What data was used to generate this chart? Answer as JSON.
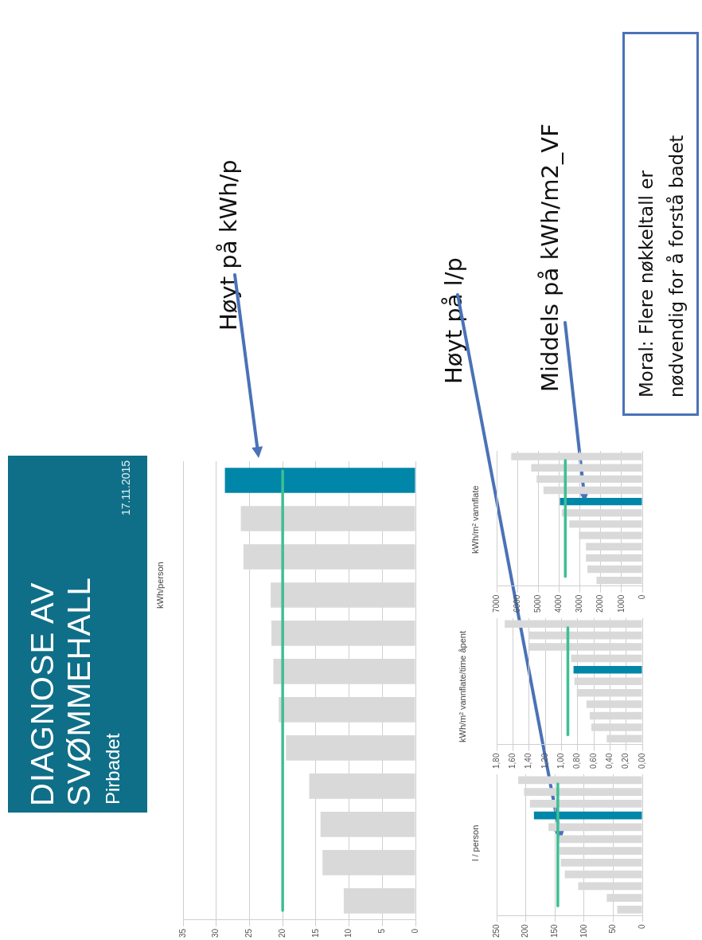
{
  "chart_data": [
    {
      "type": "bar",
      "orientation": "horizontal",
      "title": "DIAGNOSE AV SVØMMEHALL",
      "subtitle": "Pirbadet",
      "ylabel": "kWh/person",
      "categories": [
        null,
        null,
        null,
        null,
        null,
        null,
        null,
        null,
        null,
        null,
        null,
        null
      ],
      "values": [
        28.7,
        26.3,
        25.9,
        21.8,
        21.7,
        21.4,
        20.6,
        19.5,
        16.0,
        14.3,
        14.0,
        10.8
      ],
      "colors": [
        "#0086a8",
        "#d9d9d9",
        "#d9d9d9",
        "#d9d9d9",
        "#d9d9d9",
        "#d9d9d9",
        "#d9d9d9",
        "#d9d9d9",
        "#d9d9d9",
        "#d9d9d9",
        "#d9d9d9",
        "#d9d9d9"
      ],
      "xlim": [
        35,
        0
      ],
      "xticks": [
        0,
        5,
        10,
        15,
        20,
        25,
        30,
        35
      ],
      "grid": "x",
      "ref_lines": [
        {
          "axis": "x",
          "value": 20,
          "color": "#3dbf94"
        }
      ],
      "annotations": [
        "17.11.2015",
        "Høyt på kWh/p",
        "Moral: Flere nøkkeltall er nødvendig for å forstå badet"
      ]
    },
    {
      "type": "bar",
      "orientation": "horizontal",
      "ylabel": "l / person",
      "categories": [
        null,
        null,
        null,
        null,
        null,
        null,
        null,
        null,
        null,
        null,
        null,
        null
      ],
      "values": [
        213,
        203,
        193,
        186,
        161,
        143,
        142,
        140,
        133,
        110,
        61,
        43
      ],
      "colors": [
        "#d9d9d9",
        "#d9d9d9",
        "#d9d9d9",
        "#0086a8",
        "#d9d9d9",
        "#d9d9d9",
        "#d9d9d9",
        "#d9d9d9",
        "#d9d9d9",
        "#d9d9d9",
        "#d9d9d9",
        "#d9d9d9"
      ],
      "xlim": [
        250,
        0
      ],
      "xticks": [
        0,
        50,
        100,
        150,
        200,
        250
      ],
      "grid": "x",
      "ref_lines": [
        {
          "axis": "x",
          "value": 145,
          "color": "#3dbf94"
        }
      ],
      "annotations": [
        "Høyt på l/p"
      ]
    },
    {
      "type": "bar",
      "orientation": "horizontal",
      "ylabel": "kWh/m² vannflate/time åpent",
      "categories": [
        null,
        null,
        null,
        null,
        null,
        null,
        null,
        null,
        null,
        null,
        null
      ],
      "values": [
        1.7,
        1.4,
        1.4,
        0.88,
        0.85,
        0.84,
        0.81,
        0.69,
        0.65,
        0.63,
        0.44
      ],
      "colors": [
        "#d9d9d9",
        "#d9d9d9",
        "#d9d9d9",
        "#d9d9d9",
        "#0086a8",
        "#d9d9d9",
        "#d9d9d9",
        "#d9d9d9",
        "#d9d9d9",
        "#d9d9d9",
        "#d9d9d9"
      ],
      "xlim": [
        1.8,
        0
      ],
      "xticks": [
        {
          "value": 0,
          "label": "0,00"
        },
        {
          "value": 0.2,
          "label": "0,20"
        },
        {
          "value": 0.4,
          "label": "0,40"
        },
        {
          "value": 0.6,
          "label": "0,60"
        },
        {
          "value": 0.8,
          "label": "0,80"
        },
        {
          "value": 1,
          "label": "1,00"
        },
        {
          "value": 1.2,
          "label": "1,20"
        },
        {
          "value": 1.4,
          "label": "1,40"
        },
        {
          "value": 1.6,
          "label": "1,60"
        },
        {
          "value": 1.8,
          "label": "1,80"
        }
      ],
      "grid": "x",
      "ref_lines": [
        {
          "axis": "x",
          "value": 0.92,
          "color": "#3dbf94"
        }
      ]
    },
    {
      "type": "bar",
      "orientation": "horizontal",
      "ylabel": "kWh/m² vannflate",
      "categories": [
        null,
        null,
        null,
        null,
        null,
        null,
        null,
        null,
        null,
        null,
        null,
        null
      ],
      "values": [
        6300,
        5340,
        5080,
        4750,
        3960,
        3870,
        3510,
        3050,
        2710,
        2710,
        2640,
        2200
      ],
      "colors": [
        "#d9d9d9",
        "#d9d9d9",
        "#d9d9d9",
        "#d9d9d9",
        "#0086a8",
        "#d9d9d9",
        "#d9d9d9",
        "#d9d9d9",
        "#d9d9d9",
        "#d9d9d9",
        "#d9d9d9",
        "#d9d9d9"
      ],
      "xlim": [
        7000,
        0
      ],
      "xticks": [
        0,
        1000,
        2000,
        3000,
        4000,
        5000,
        6000,
        7000
      ],
      "grid": "x",
      "ref_lines": [
        {
          "axis": "x",
          "value": 3700,
          "color": "#3dbf94"
        }
      ],
      "annotations": [
        "Middels på kWh/m2_VF"
      ]
    }
  ]
}
